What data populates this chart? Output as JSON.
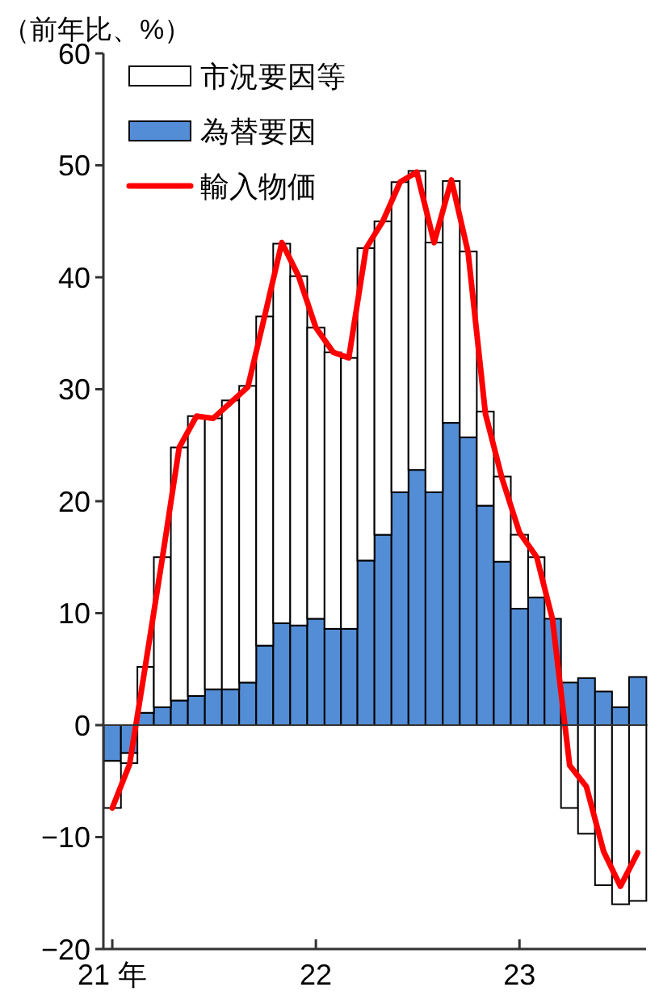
{
  "chart_data": {
    "type": "bar",
    "stacked": true,
    "ylabel": "（前年比、%）",
    "x": [
      "2021-01",
      "2021-02",
      "2021-03",
      "2021-04",
      "2021-05",
      "2021-06",
      "2021-07",
      "2021-08",
      "2021-09",
      "2021-10",
      "2021-11",
      "2021-12",
      "2022-01",
      "2022-02",
      "2022-03",
      "2022-04",
      "2022-05",
      "2022-06",
      "2022-07",
      "2022-08",
      "2022-09",
      "2022-10",
      "2022-11",
      "2022-12",
      "2023-01",
      "2023-02",
      "2023-03",
      "2023-04",
      "2023-05",
      "2023-06",
      "2023-07",
      "2023-08"
    ],
    "series": [
      {
        "name": "為替要因",
        "color": "#538dd5",
        "values": [
          -3.2,
          -2.5,
          1.1,
          1.6,
          2.2,
          2.6,
          3.2,
          3.2,
          3.8,
          7.1,
          9.1,
          8.9,
          9.5,
          8.6,
          8.6,
          14.7,
          17.0,
          20.8,
          22.8,
          20.8,
          27.0,
          25.7,
          19.6,
          14.6,
          10.4,
          11.4,
          9.5,
          3.8,
          4.2,
          3.0,
          1.6,
          4.3
        ]
      },
      {
        "name": "市況要因等",
        "color": "#ffffff",
        "values": [
          -4.2,
          -0.9,
          4.1,
          13.4,
          22.6,
          25.0,
          24.2,
          25.8,
          26.5,
          29.4,
          33.9,
          31.2,
          26.0,
          24.7,
          24.2,
          27.9,
          28.0,
          27.7,
          26.7,
          22.3,
          21.6,
          16.6,
          8.4,
          7.6,
          6.6,
          3.6,
          null,
          -7.4,
          -9.7,
          -14.3,
          -16.0,
          -15.7
        ]
      },
      {
        "name": "輸入物価",
        "type": "line",
        "color": "#ff0000",
        "values": [
          -7.4,
          -3.5,
          5.2,
          15.0,
          24.8,
          27.6,
          27.4,
          28.8,
          30.2,
          36.5,
          43.1,
          40.1,
          35.5,
          33.3,
          32.8,
          42.6,
          45.0,
          48.5,
          49.4,
          43.1,
          48.7,
          42.2,
          27.8,
          22.0,
          17.2,
          15.0,
          9.5,
          -3.6,
          -5.5,
          -11.3,
          -14.4,
          -11.4
        ]
      }
    ],
    "xlim": [
      "2020-12-16",
      "2023-08-16"
    ],
    "ref_lines": [
      {
        "axis": "y",
        "value": 0,
        "color": "#333333"
      }
    ],
    "xticks": [
      {
        "value": "2021-01",
        "label": "21 年"
      },
      {
        "value": "2022-01",
        "label": "22"
      },
      {
        "value": "2023-01",
        "label": "23"
      }
    ],
    "ylim": [
      -20,
      60
    ],
    "yticks": [
      -20,
      -10,
      0,
      10,
      20,
      30,
      40,
      50,
      60
    ],
    "grid": false,
    "legend": "top left",
    "marker": "none",
    "line_style": "solid"
  }
}
